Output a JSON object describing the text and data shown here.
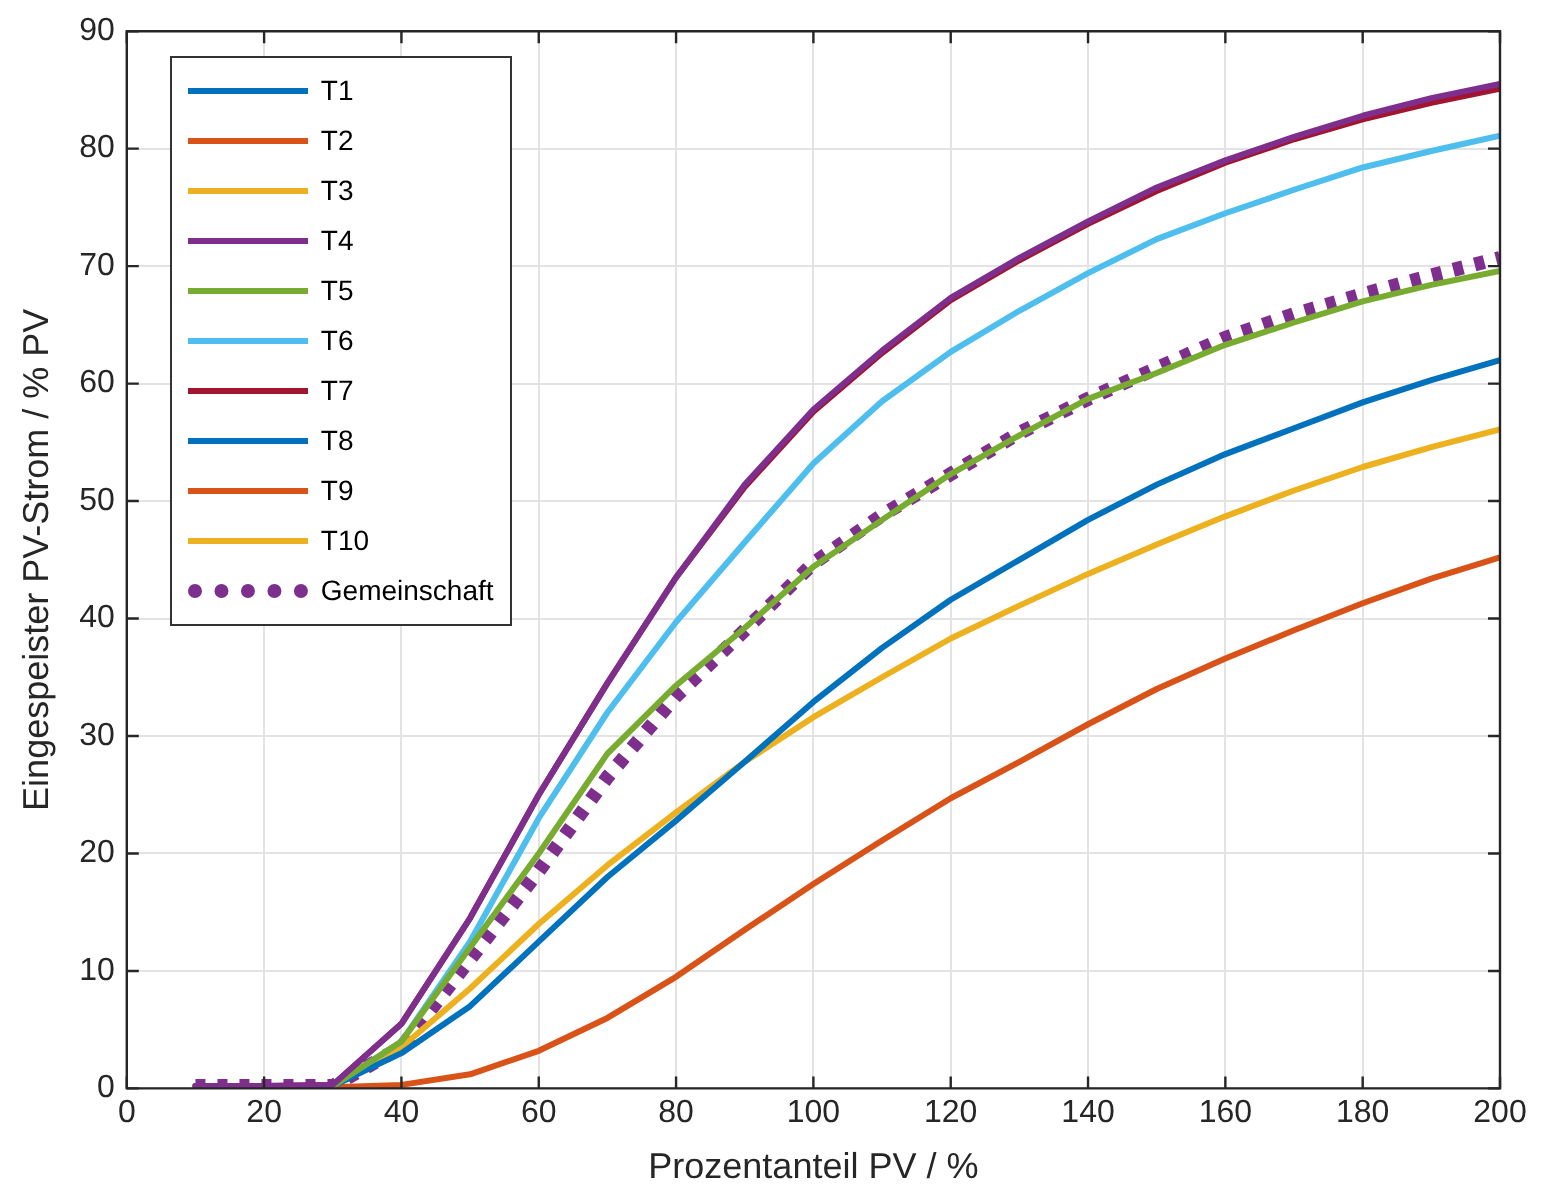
{
  "chart_data": {
    "type": "line",
    "xlabel": "Prozentanteil PV / %",
    "ylabel": "Eingespeister PV-Strom / % PV",
    "x": [
      10,
      20,
      30,
      40,
      50,
      60,
      70,
      80,
      90,
      100,
      110,
      120,
      130,
      140,
      150,
      160,
      170,
      180,
      190,
      200
    ],
    "xlim": [
      0,
      200
    ],
    "xticks": [
      0,
      20,
      40,
      60,
      80,
      100,
      120,
      140,
      160,
      180,
      200
    ],
    "ylim": [
      0,
      90
    ],
    "yticks": [
      0,
      10,
      20,
      30,
      40,
      50,
      60,
      70,
      80,
      90
    ],
    "grid": true,
    "legend": "top left",
    "marker": "none",
    "line_style": "solid",
    "series": [
      {
        "name": "T1",
        "color": "#0072bd",
        "values": [
          null,
          null,
          null,
          null,
          null,
          null,
          null,
          null,
          null,
          null,
          null,
          null,
          null,
          null,
          null,
          null,
          null,
          null,
          null,
          null
        ]
      },
      {
        "name": "T2",
        "color": "#d95319",
        "values": [
          null,
          null,
          null,
          null,
          null,
          null,
          null,
          null,
          null,
          null,
          null,
          null,
          null,
          null,
          null,
          null,
          null,
          null,
          null,
          null
        ]
      },
      {
        "name": "T3",
        "color": "#edb120",
        "values": [
          null,
          null,
          null,
          null,
          null,
          null,
          null,
          null,
          null,
          null,
          null,
          null,
          null,
          null,
          null,
          null,
          null,
          null,
          null,
          null
        ]
      },
      {
        "name": "T4",
        "color": "#7e2f8e",
        "values": [
          0.2,
          0.2,
          0.3,
          5.5,
          14.5,
          25,
          34.5,
          43.5,
          51.4,
          57.8,
          62.8,
          67.3,
          70.7,
          73.8,
          76.7,
          79,
          81,
          82.8,
          84.3,
          85.5
        ]
      },
      {
        "name": "T5",
        "color": "#77ac30",
        "values": [
          0.2,
          0.2,
          0.2,
          4,
          12,
          20,
          28.5,
          34.3,
          39.2,
          44.4,
          48.4,
          52.3,
          55.6,
          58.7,
          60.9,
          63.3,
          65.2,
          67,
          68.4,
          69.6
        ]
      },
      {
        "name": "T6",
        "color": "#4dbeee",
        "values": [
          null,
          null,
          0.2,
          4,
          12.5,
          23,
          32,
          39.7,
          46.5,
          53.2,
          58.5,
          62.7,
          66.2,
          69.4,
          72.3,
          74.5,
          76.5,
          78.4,
          79.8,
          81.1
        ]
      },
      {
        "name": "T7",
        "color": "#a2142f",
        "values": [
          0.2,
          0.2,
          0.3,
          5.5,
          14.5,
          25,
          34.5,
          43.5,
          51.2,
          57.6,
          62.6,
          67.1,
          70.5,
          73.6,
          76.4,
          78.8,
          80.8,
          82.5,
          83.9,
          85.1
        ]
      },
      {
        "name": "T8",
        "color": "#0072bd",
        "values": [
          0.2,
          0.2,
          0.2,
          3,
          7,
          12.5,
          18,
          22.8,
          27.8,
          32.9,
          37.5,
          41.6,
          45,
          48.4,
          51.4,
          54,
          56.2,
          58.4,
          60.3,
          62
        ]
      },
      {
        "name": "T9",
        "color": "#d95319",
        "values": [
          0.1,
          0.1,
          0.1,
          0.3,
          1.2,
          3.2,
          6,
          9.5,
          13.5,
          17.4,
          21.1,
          24.7,
          27.8,
          31,
          34,
          36.6,
          39,
          41.3,
          43.4,
          45.2
        ]
      },
      {
        "name": "T10",
        "color": "#edb120",
        "values": [
          null,
          null,
          0.2,
          3.5,
          8.5,
          14,
          19,
          23.5,
          27.8,
          31.6,
          35,
          38.3,
          41.1,
          43.8,
          46.3,
          48.7,
          50.9,
          52.9,
          54.6,
          56.1
        ]
      },
      {
        "name": "Gemeinschaft",
        "color": "#7e2f8e",
        "line_style": "dotted",
        "values": [
          0.2,
          0.2,
          0.2,
          3.5,
          11,
          18.5,
          26.5,
          33.4,
          39,
          44.7,
          48.8,
          52.3,
          55.8,
          58.7,
          61.3,
          63.9,
          65.9,
          67.6,
          69.2,
          70.7
        ]
      }
    ]
  }
}
